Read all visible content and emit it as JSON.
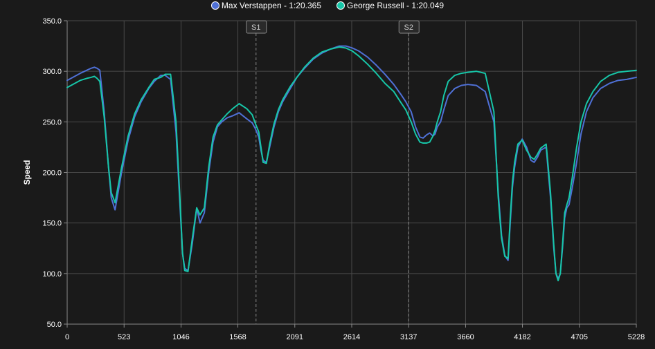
{
  "chart_data": {
    "type": "line",
    "title": "",
    "xlabel": "",
    "ylabel": "Speed",
    "xlim": [
      0,
      5228
    ],
    "ylim": [
      50,
      350
    ],
    "x_ticks": [
      "0",
      "523",
      "1046",
      "1568",
      "2091",
      "2614",
      "3137",
      "3660",
      "4182",
      "4705",
      "5228"
    ],
    "y_ticks": [
      "50.0",
      "100.0",
      "150.0",
      "200.0",
      "250.0",
      "300.0",
      "350.0"
    ],
    "grid": true,
    "legend_position": "top",
    "sector_markers": [
      {
        "label": "S1",
        "x": 1735
      },
      {
        "label": "S2",
        "x": 3137
      }
    ],
    "series": [
      {
        "name": "Max Verstappen - 1:20.365",
        "color": "#4f70d6",
        "x": [
          0,
          120,
          180,
          220,
          250,
          275,
          300,
          340,
          380,
          405,
          440,
          500,
          560,
          620,
          680,
          750,
          800,
          860,
          900,
          950,
          1000,
          1040,
          1060,
          1080,
          1110,
          1150,
          1190,
          1220,
          1260,
          1300,
          1340,
          1380,
          1420,
          1470,
          1520,
          1580,
          1650,
          1700,
          1730,
          1760,
          1780,
          1800,
          1830,
          1860,
          1900,
          1940,
          1980,
          2050,
          2110,
          2180,
          2260,
          2340,
          2420,
          2500,
          2560,
          2620,
          2680,
          2760,
          2840,
          2920,
          3000,
          3060,
          3110,
          3160,
          3200,
          3240,
          3270,
          3300,
          3330,
          3360,
          3380,
          3400,
          3430,
          3460,
          3500,
          3560,
          3620,
          3680,
          3760,
          3840,
          3920,
          3960,
          3990,
          4020,
          4050,
          4070,
          4090,
          4110,
          4140,
          4180,
          4220,
          4260,
          4290,
          4320,
          4350,
          4400,
          4440,
          4470,
          4490,
          4510,
          4530,
          4550,
          4570,
          4590,
          4610,
          4640,
          4680,
          4720,
          4770,
          4830,
          4900,
          4980,
          5060,
          5140,
          5228
        ],
        "values": [
          291,
          298,
          301,
          303,
          304,
          303,
          301,
          260,
          205,
          175,
          163,
          200,
          232,
          255,
          270,
          283,
          290,
          296,
          296,
          292,
          240,
          160,
          120,
          105,
          103,
          130,
          165,
          150,
          160,
          200,
          230,
          245,
          250,
          254,
          256,
          259,
          253,
          249,
          243,
          235,
          222,
          212,
          210,
          225,
          245,
          260,
          270,
          283,
          294,
          303,
          312,
          318,
          322,
          325,
          325,
          323,
          320,
          314,
          306,
          297,
          287,
          278,
          270,
          260,
          245,
          235,
          234,
          237,
          239,
          236,
          238,
          245,
          250,
          262,
          276,
          283,
          286,
          287,
          286,
          280,
          250,
          180,
          138,
          118,
          113,
          150,
          185,
          205,
          225,
          233,
          225,
          212,
          210,
          215,
          222,
          225,
          175,
          125,
          100,
          95,
          100,
          125,
          155,
          165,
          168,
          185,
          210,
          238,
          260,
          274,
          283,
          288,
          291,
          292,
          294
        ]
      },
      {
        "name": "George Russell - 1:20.049",
        "color": "#17c6a8",
        "x": [
          0,
          120,
          180,
          220,
          250,
          275,
          300,
          340,
          380,
          405,
          440,
          500,
          560,
          620,
          680,
          750,
          800,
          860,
          900,
          950,
          1000,
          1040,
          1060,
          1080,
          1110,
          1150,
          1190,
          1220,
          1260,
          1300,
          1340,
          1380,
          1420,
          1470,
          1520,
          1580,
          1650,
          1700,
          1730,
          1760,
          1780,
          1800,
          1830,
          1860,
          1900,
          1940,
          1980,
          2050,
          2110,
          2180,
          2260,
          2340,
          2420,
          2500,
          2560,
          2620,
          2680,
          2760,
          2840,
          2920,
          3000,
          3060,
          3110,
          3160,
          3200,
          3240,
          3270,
          3300,
          3330,
          3360,
          3380,
          3400,
          3430,
          3460,
          3500,
          3560,
          3620,
          3680,
          3760,
          3840,
          3920,
          3960,
          3990,
          4020,
          4050,
          4070,
          4090,
          4110,
          4140,
          4180,
          4220,
          4260,
          4290,
          4320,
          4350,
          4400,
          4440,
          4470,
          4490,
          4510,
          4530,
          4550,
          4570,
          4590,
          4610,
          4640,
          4680,
          4720,
          4770,
          4830,
          4900,
          4980,
          5060,
          5140,
          5228
        ],
        "values": [
          284,
          291,
          293,
          294,
          295,
          293,
          290,
          255,
          205,
          180,
          170,
          205,
          236,
          258,
          272,
          284,
          292,
          294,
          297,
          297,
          250,
          165,
          120,
          103,
          102,
          135,
          165,
          158,
          165,
          205,
          235,
          247,
          252,
          258,
          263,
          268,
          263,
          257,
          248,
          240,
          225,
          210,
          209,
          228,
          248,
          262,
          272,
          285,
          294,
          304,
          313,
          319,
          322,
          324,
          323,
          320,
          315,
          307,
          298,
          288,
          280,
          270,
          262,
          250,
          238,
          230,
          229,
          229,
          230,
          236,
          242,
          250,
          260,
          276,
          290,
          296,
          298,
          299,
          300,
          298,
          260,
          175,
          135,
          117,
          115,
          155,
          190,
          210,
          228,
          232,
          222,
          215,
          213,
          218,
          224,
          228,
          180,
          128,
          100,
          93,
          100,
          128,
          160,
          168,
          175,
          195,
          225,
          250,
          268,
          280,
          290,
          296,
          299,
          300,
          301
        ]
      }
    ]
  }
}
